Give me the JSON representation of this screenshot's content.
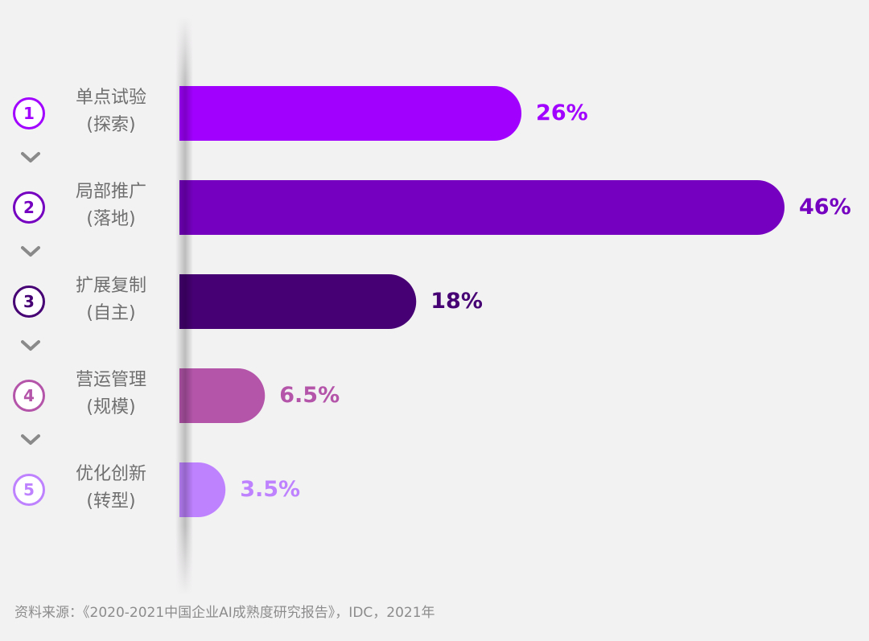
{
  "chart_data": {
    "type": "bar",
    "orientation": "horizontal",
    "categories": [
      {
        "line1": "单点试验",
        "line2": "(探索)"
      },
      {
        "line1": "局部推广",
        "line2": "(落地)"
      },
      {
        "line1": "扩展复制",
        "line2": "(自主)"
      },
      {
        "line1": "营运管理",
        "line2": "(规模)"
      },
      {
        "line1": "优化创新",
        "line2": "(转型)"
      }
    ],
    "numbers": [
      "1",
      "2",
      "3",
      "4",
      "5"
    ],
    "values": [
      26,
      46,
      18,
      6.5,
      3.5
    ],
    "value_labels": [
      "26%",
      "46%",
      "18%",
      "6.5%",
      "3.5%"
    ],
    "colors": [
      "#a100ff",
      "#7500c0",
      "#460073",
      "#b455aa",
      "#be82ff"
    ],
    "xlim": [
      0,
      46
    ]
  },
  "source": "资料来源：《2020-2021中国企业AI成熟度研究报告》，IDC，2021年"
}
